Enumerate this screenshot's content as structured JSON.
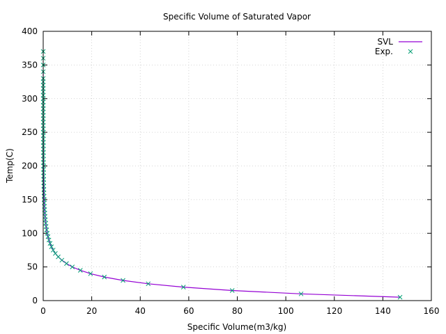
{
  "chart_data": {
    "type": "line",
    "title": "Specific Volume of Saturated Vapor",
    "xlabel": "Specific Volume(m3/kg)",
    "ylabel": "Temp(C)",
    "xlim": [
      0,
      160
    ],
    "ylim": [
      0,
      400
    ],
    "xticks": [
      0,
      20,
      40,
      60,
      80,
      100,
      120,
      140,
      160
    ],
    "yticks": [
      0,
      50,
      100,
      150,
      200,
      250,
      300,
      350,
      400
    ],
    "grid": true,
    "legend_position": "top-right",
    "colors": {
      "SVL": "#9400d3",
      "Exp.": "#009e73"
    },
    "series": [
      {
        "name": "SVL",
        "kind": "line",
        "color": "#9400d3",
        "x": [
          147.1,
          106.3,
          77.9,
          57.8,
          43.3,
          32.9,
          25.2,
          19.5,
          15.3,
          12.0,
          9.6,
          7.7,
          6.2,
          5.0,
          4.1,
          3.4,
          2.83,
          2.36,
          1.98,
          1.67,
          1.42,
          1.21,
          1.04,
          0.89,
          0.77,
          0.67,
          0.51,
          0.39,
          0.31,
          0.24,
          0.19,
          0.15,
          0.13,
          0.1,
          0.085,
          0.071,
          0.06,
          0.05,
          0.042,
          0.035,
          0.029,
          0.023,
          0.018,
          0.013,
          0.01,
          0.007,
          0.005
        ],
        "y": [
          5,
          10,
          15,
          20,
          25,
          30,
          35,
          40,
          45,
          50,
          55,
          60,
          65,
          70,
          75,
          80,
          85,
          90,
          95,
          100,
          105,
          110,
          115,
          120,
          125,
          130,
          140,
          150,
          160,
          170,
          180,
          190,
          200,
          210,
          220,
          230,
          240,
          250,
          260,
          270,
          280,
          290,
          300,
          310,
          320,
          330,
          340
        ]
      },
      {
        "name": "Exp.",
        "kind": "scatter",
        "color": "#009e73",
        "x": [
          147.1,
          106.3,
          77.9,
          57.8,
          43.3,
          32.9,
          25.2,
          19.5,
          15.3,
          12.0,
          9.6,
          7.7,
          6.2,
          5.0,
          4.1,
          3.4,
          2.83,
          2.36,
          1.98,
          1.67,
          1.42,
          1.21,
          1.04,
          0.89,
          0.77,
          0.67,
          0.58,
          0.51,
          0.45,
          0.39,
          0.35,
          0.31,
          0.27,
          0.24,
          0.21,
          0.19,
          0.17,
          0.15,
          0.14,
          0.13,
          0.11,
          0.1,
          0.09,
          0.085,
          0.078,
          0.071,
          0.065,
          0.06,
          0.055,
          0.05,
          0.046,
          0.042,
          0.038,
          0.035,
          0.032,
          0.029,
          0.026,
          0.023,
          0.021,
          0.018,
          0.016,
          0.013,
          0.012,
          0.01,
          0.009,
          0.007,
          0.006,
          0.005,
          0.004,
          0.003
        ],
        "y": [
          5,
          10,
          15,
          20,
          25,
          30,
          35,
          40,
          45,
          50,
          55,
          60,
          65,
          70,
          75,
          80,
          85,
          90,
          95,
          100,
          105,
          110,
          115,
          120,
          125,
          130,
          135,
          140,
          145,
          150,
          155,
          160,
          165,
          170,
          175,
          180,
          185,
          190,
          195,
          200,
          205,
          210,
          215,
          220,
          225,
          230,
          235,
          240,
          245,
          250,
          255,
          260,
          265,
          270,
          275,
          280,
          285,
          290,
          295,
          300,
          305,
          310,
          315,
          320,
          325,
          330,
          340,
          350,
          360,
          370
        ]
      }
    ]
  }
}
